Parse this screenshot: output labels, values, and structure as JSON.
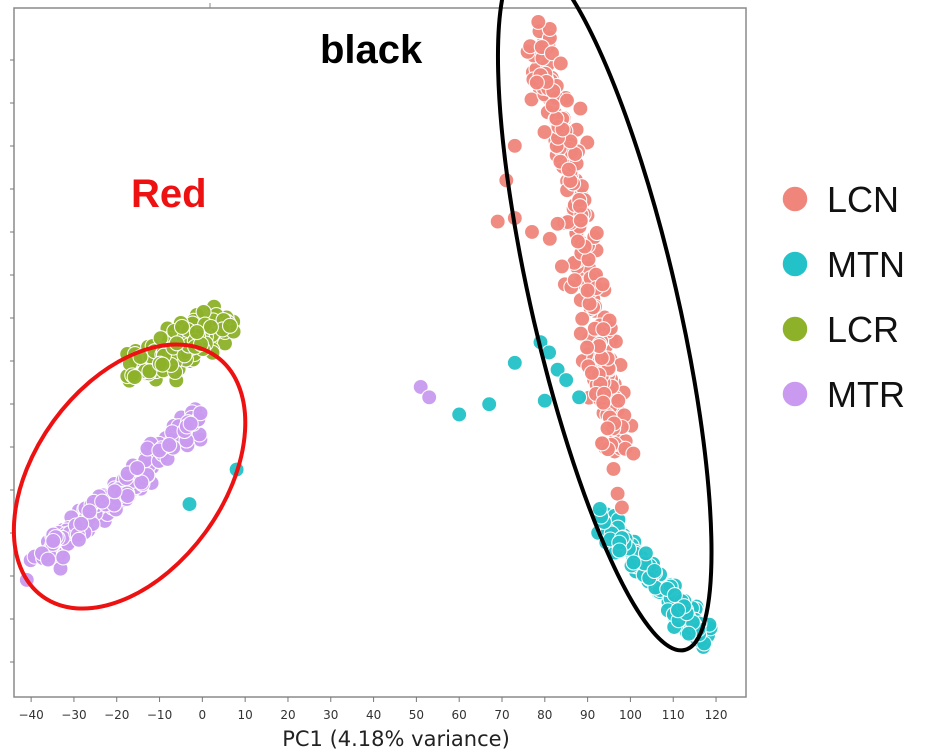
{
  "chart_data": {
    "type": "scatter",
    "title": "",
    "xlabel": "PC1 (4.18% variance)",
    "ylabel": "",
    "xlim": [
      -44,
      127
    ],
    "ylim": [
      -1,
      1
    ],
    "x_ticks": [
      -40,
      -30,
      -20,
      -10,
      0,
      10,
      20,
      30,
      40,
      50,
      60,
      70,
      80,
      90,
      100,
      110,
      120
    ],
    "grid": false,
    "legend_position": "right",
    "series": [
      {
        "name": "LCN",
        "color": "#F0857C"
      },
      {
        "name": "MTN",
        "color": "#22C2C8"
      },
      {
        "name": "LCR",
        "color": "#8DB22A"
      },
      {
        "name": "MTR",
        "color": "#C99AF0"
      }
    ],
    "clusters": [
      {
        "series": "LCN",
        "from": [
          80,
          0.92
        ],
        "to": [
          97,
          -0.3
        ],
        "spread": [
          3.5,
          0.05
        ],
        "count": 240
      },
      {
        "series": "MTN",
        "from": [
          93,
          -0.48
        ],
        "to": [
          117,
          -0.82
        ],
        "spread": [
          2.5,
          0.03
        ],
        "count": 180
      },
      {
        "series": "LCR",
        "from": [
          -14,
          -0.05
        ],
        "to": [
          5,
          0.09
        ],
        "spread": [
          4.5,
          0.05
        ],
        "count": 160
      },
      {
        "series": "MTR",
        "from": [
          -37,
          -0.6
        ],
        "to": [
          0,
          -0.18
        ],
        "spread": [
          3.0,
          0.025
        ],
        "count": 200
      }
    ],
    "points": [
      {
        "series": "MTR",
        "x": -41,
        "y": -0.66
      },
      {
        "series": "MTR",
        "x": 51,
        "y": -0.1
      },
      {
        "series": "MTR",
        "x": 53,
        "y": -0.13
      },
      {
        "series": "MTN",
        "x": 8,
        "y": -0.34
      },
      {
        "series": "MTN",
        "x": -3,
        "y": -0.44
      },
      {
        "series": "MTN",
        "x": 60,
        "y": -0.18
      },
      {
        "series": "MTN",
        "x": 67,
        "y": -0.15
      },
      {
        "series": "MTN",
        "x": 73,
        "y": -0.03
      },
      {
        "series": "MTN",
        "x": 79,
        "y": 0.03
      },
      {
        "series": "MTN",
        "x": 81,
        "y": 0.0
      },
      {
        "series": "MTN",
        "x": 83,
        "y": -0.05
      },
      {
        "series": "MTN",
        "x": 85,
        "y": -0.08
      },
      {
        "series": "MTN",
        "x": 80,
        "y": -0.14
      },
      {
        "series": "MTN",
        "x": 88,
        "y": -0.13
      },
      {
        "series": "LCN",
        "x": 69,
        "y": 0.38
      },
      {
        "series": "LCN",
        "x": 73,
        "y": 0.39
      },
      {
        "series": "LCN",
        "x": 71,
        "y": 0.5
      },
      {
        "series": "LCN",
        "x": 73,
        "y": 0.6
      },
      {
        "series": "LCN",
        "x": 77,
        "y": 0.35
      },
      {
        "series": "LCN",
        "x": 87,
        "y": 0.21
      },
      {
        "series": "LCN",
        "x": 97,
        "y": -0.41
      },
      {
        "series": "LCN",
        "x": 98,
        "y": -0.45
      },
      {
        "series": "LCN",
        "x": 84,
        "y": 0.25
      },
      {
        "series": "LCN",
        "x": 90,
        "y": 0.18
      }
    ]
  },
  "annotations": [
    {
      "label": "Red",
      "color": "#EE1111",
      "ellipse": {
        "cx": -17,
        "cy": -0.36,
        "rx": 22,
        "ry": 0.43,
        "rotate": 36
      }
    },
    {
      "label": "black",
      "color": "#000000",
      "ellipse": {
        "cx": 94,
        "cy": 0.14,
        "rx": 17,
        "ry": 1.03,
        "rotate": -13
      }
    }
  ]
}
